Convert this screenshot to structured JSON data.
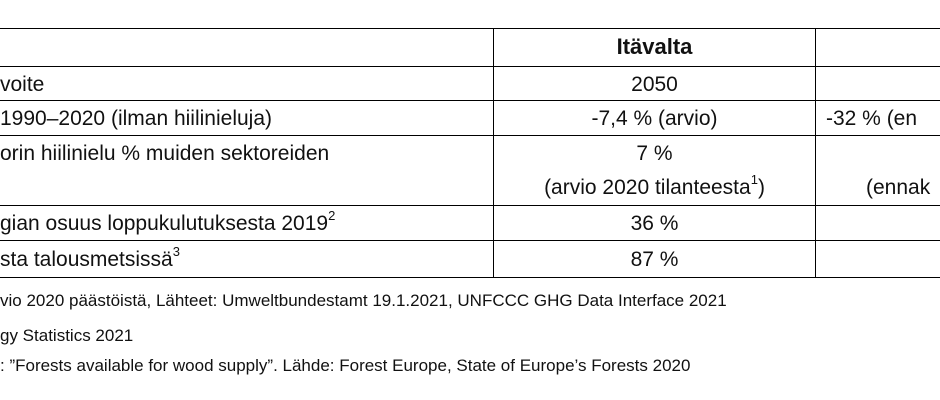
{
  "table": {
    "header": {
      "col1": "Itävalta"
    },
    "rows": [
      {
        "label": "voite",
        "col1": "2050",
        "col2": ""
      },
      {
        "label": "1990–2020 (ilman hiilinieluja)",
        "col1": "-7,4 % (arvio)",
        "col2": "-32 % (en"
      },
      {
        "label": "orin hiilinielu % muiden sektoreiden",
        "col1": "7 %",
        "col1_line2": "(arvio 2020 tilanteesta",
        "col1_line2_sup": "1",
        "col1_line2_end": ")",
        "col2_line2": "(ennak"
      },
      {
        "label": "gian osuus loppukulutuksesta 2019",
        "label_sup": "2",
        "col1": "36 %",
        "col2": ""
      },
      {
        "label": "sta talousmetsissä",
        "label_sup": "3",
        "col1": "87 %",
        "col2": ""
      }
    ]
  },
  "notes": [
    "vio 2020 päästöistä, Lähteet: Umweltbundestamt 19.1.2021, UNFCCC GHG Data Interface 2021",
    "gy Statistics 2021",
    ": ”Forests available for wood supply”. Lähde: Forest Europe, State of Europe’s Forests 2020"
  ]
}
